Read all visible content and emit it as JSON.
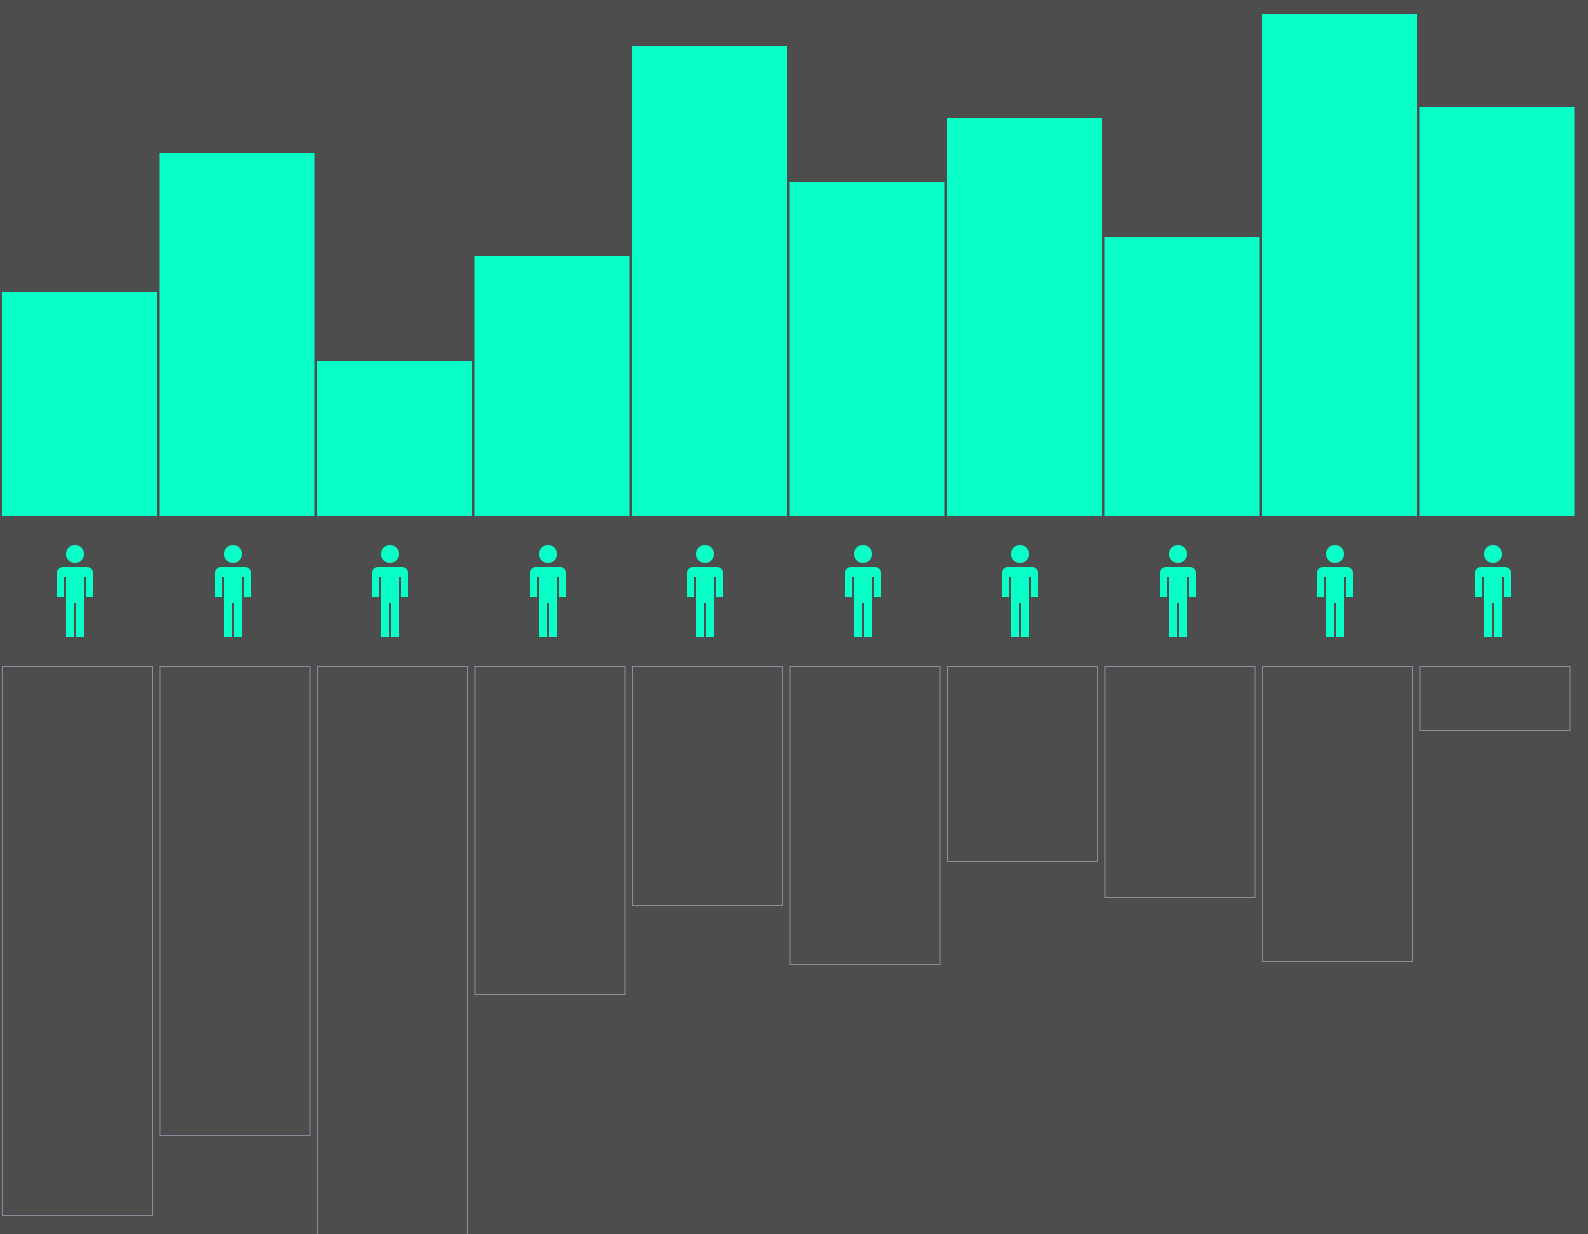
{
  "chart_data": [
    {
      "type": "bar",
      "direction": "up",
      "filled": true,
      "color": "#0affc8",
      "values": [
        224,
        363,
        155,
        260,
        470,
        334,
        398,
        279,
        502,
        409
      ],
      "ylim": [
        0,
        516
      ]
    },
    {
      "type": "bar",
      "direction": "down",
      "filled": false,
      "color": "#8c8c9c",
      "values": [
        549,
        469,
        580,
        328,
        239,
        298,
        195,
        231,
        295,
        64
      ],
      "ylim": [
        0,
        568
      ]
    }
  ]
}
